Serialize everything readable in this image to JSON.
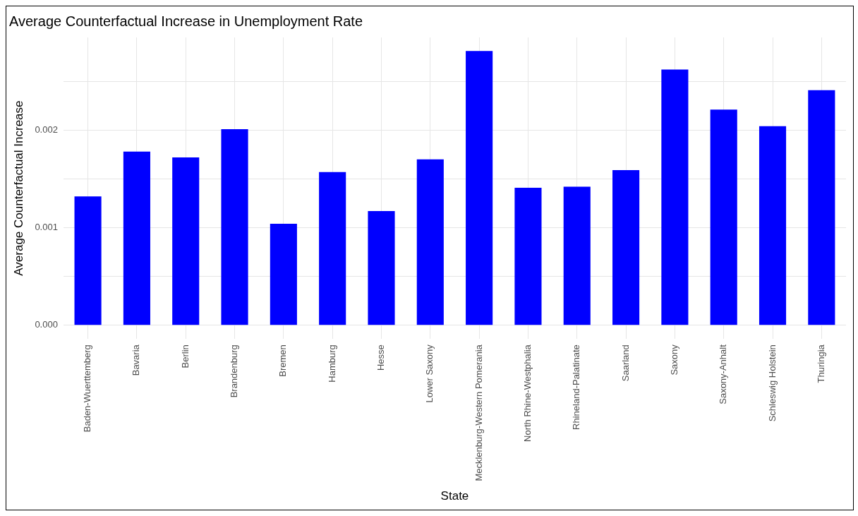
{
  "chart_data": {
    "type": "bar",
    "title": "Average Counterfactual Increase in Unemployment Rate",
    "xlabel": "State",
    "ylabel": "Average Counterfactual Increase",
    "categories": [
      "Baden-Wuerttemberg",
      "Bavaria",
      "Berlin",
      "Brandenburg",
      "Bremen",
      "Hamburg",
      "Hesse",
      "Lower Saxony",
      "Mecklenburg-Western Pomerania",
      "North Rhine-Westphalia",
      "Rhineland-Palatinate",
      "Saarland",
      "Saxony",
      "Saxony-Anhalt",
      "Schleswig Holstein",
      "Thuringia"
    ],
    "values": [
      0.00132,
      0.00178,
      0.00172,
      0.00201,
      0.00104,
      0.00157,
      0.00117,
      0.0017,
      0.00281,
      0.00141,
      0.00142,
      0.00159,
      0.00262,
      0.00221,
      0.00204,
      0.00241
    ],
    "color": "#0000ff",
    "ylim": [
      -0.00014,
      0.00295
    ],
    "yticks": [
      {
        "value": 0,
        "label": "0.000"
      },
      {
        "value": 0.0005,
        "label": null
      },
      {
        "value": 0.001,
        "label": "0.001"
      },
      {
        "value": 0.0015,
        "label": null
      },
      {
        "value": 0.002,
        "label": "0.002"
      },
      {
        "value": 0.0025,
        "label": null
      }
    ],
    "grid": true,
    "legend": false
  }
}
